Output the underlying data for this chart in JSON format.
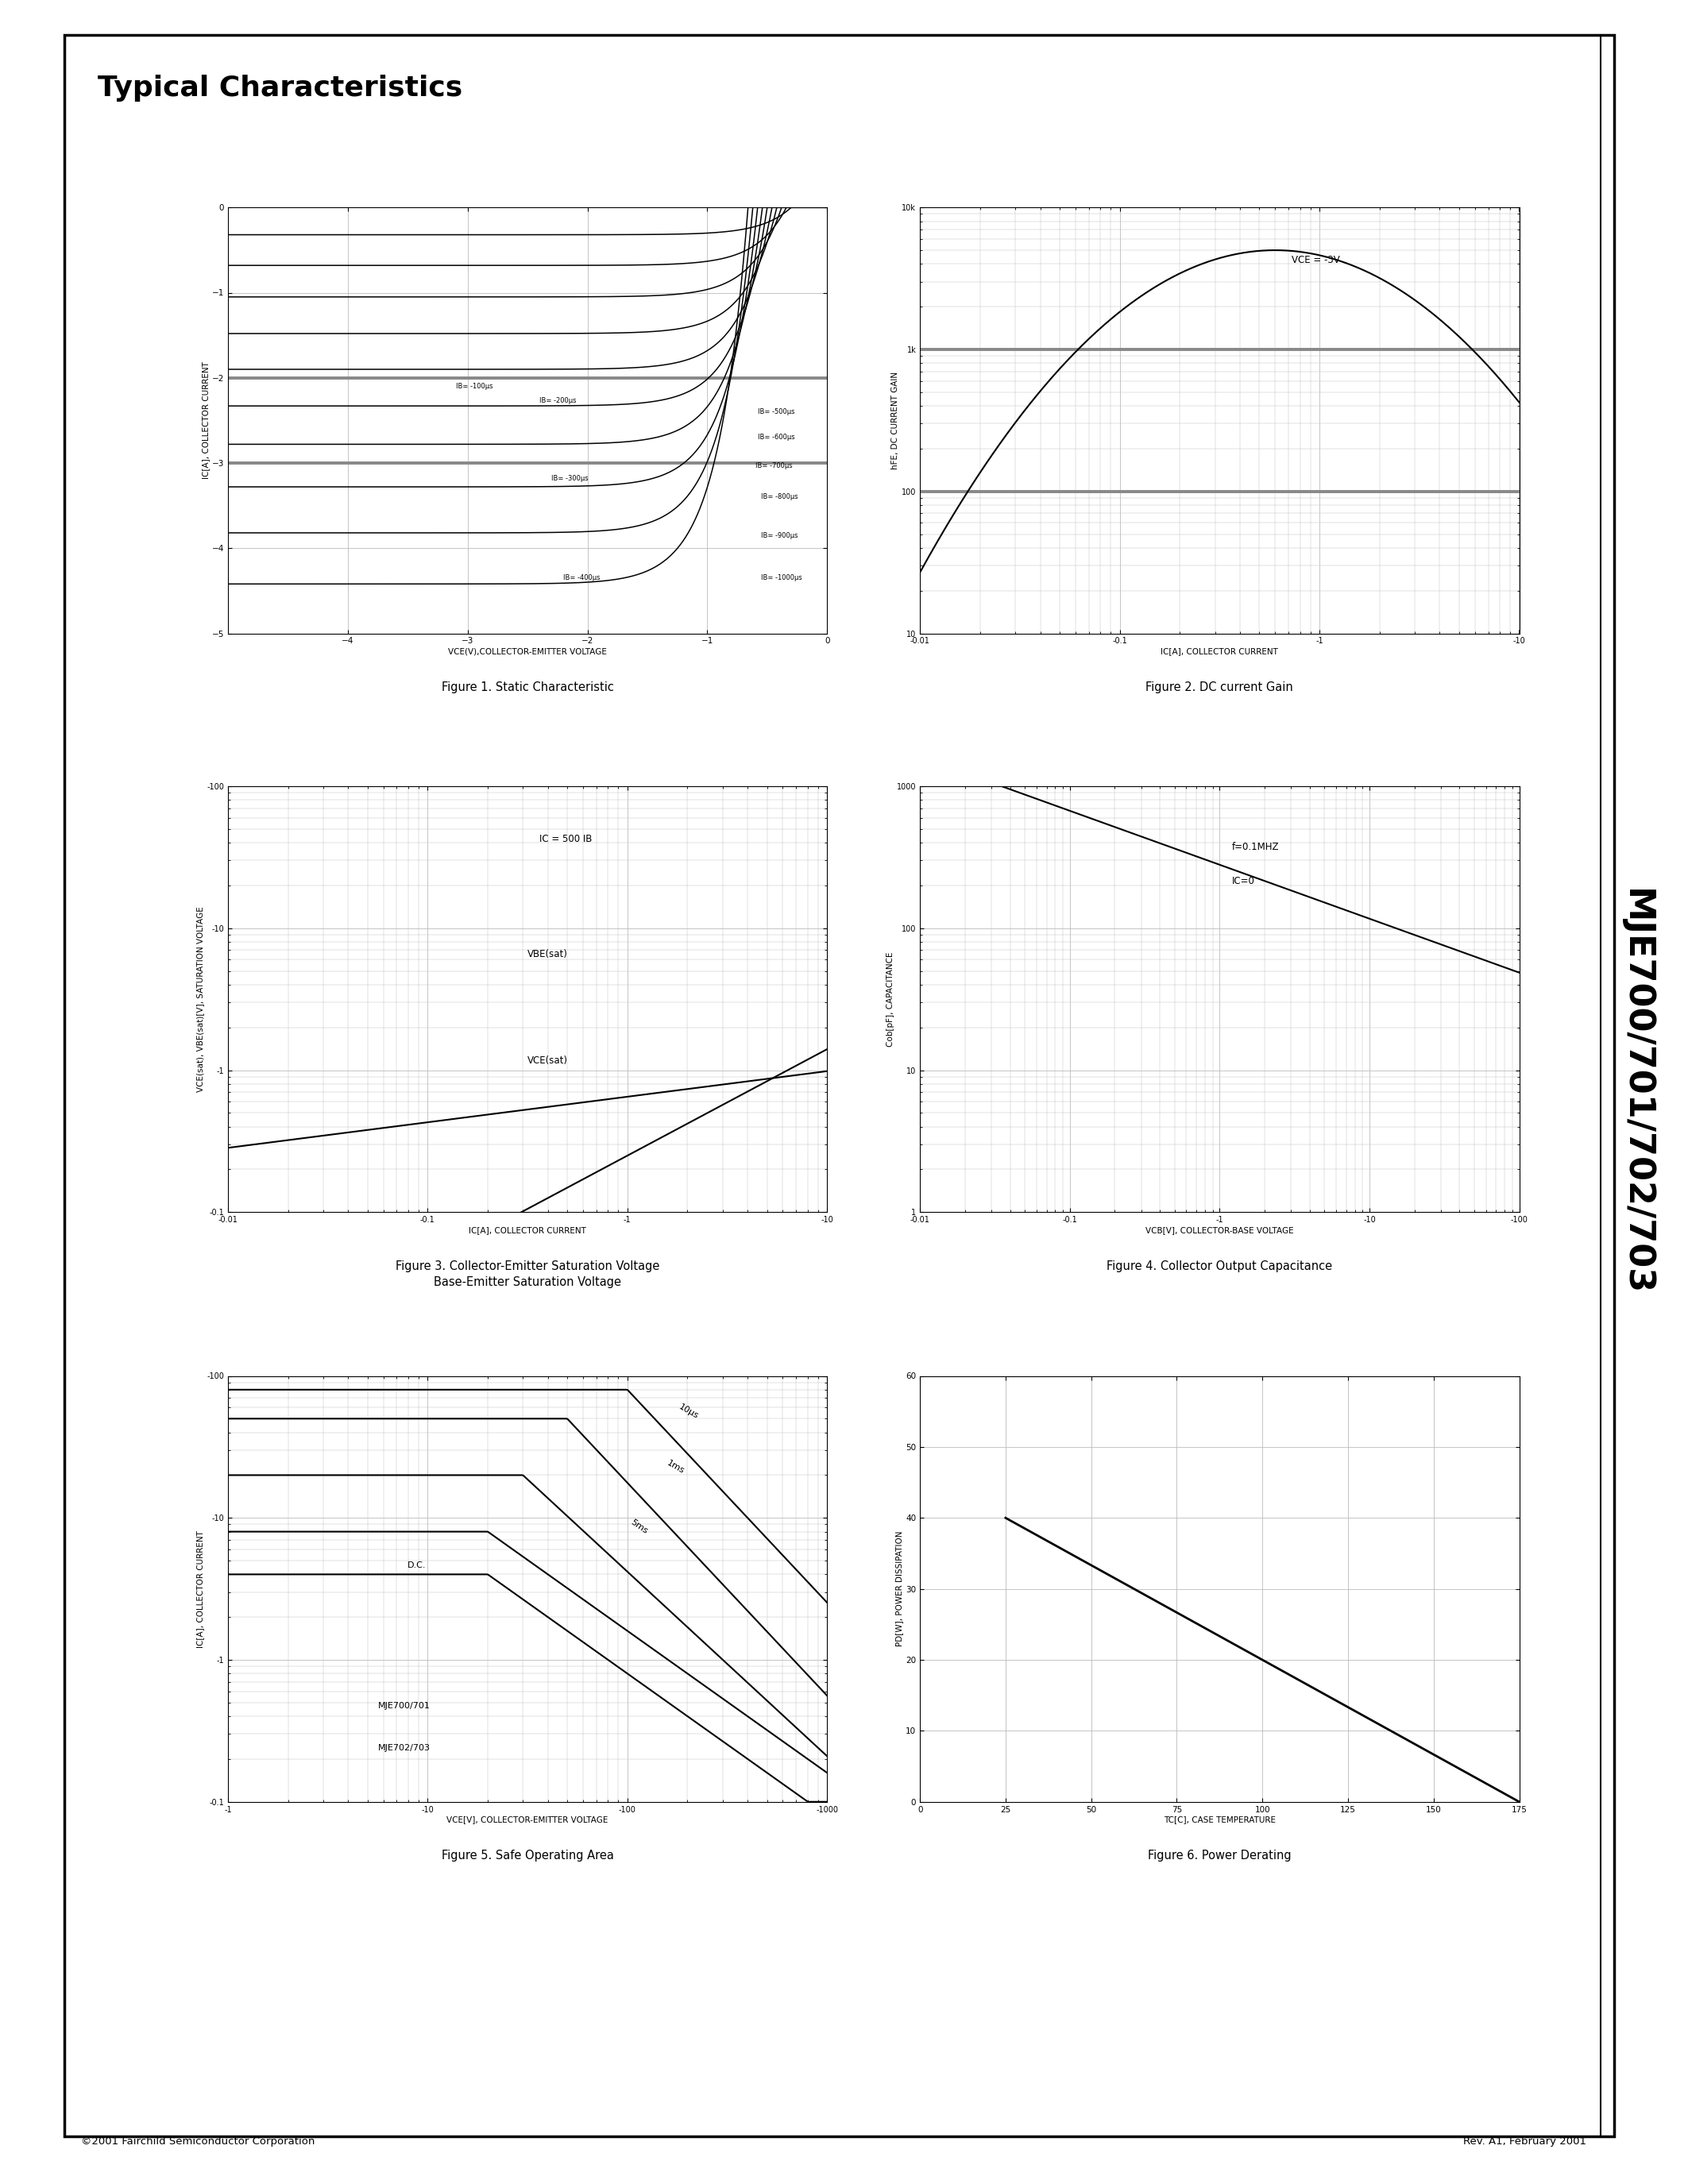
{
  "page_title": "Typical Characteristics",
  "part_number": "MJE700/701/702/703",
  "fig1_title": "Figure 1. Static Characteristic",
  "fig1_xlabel": "VCE(V),COLLECTOR-EMITTER VOLTAGE",
  "fig1_ylabel": "IC[A], COLLECTOR CURRENT",
  "fig2_title": "Figure 2. DC current Gain",
  "fig2_xlabel": "IC[A], COLLECTOR CURRENT",
  "fig2_ylabel": "hFE, DC CURRENT GAIN",
  "fig2_vce": "VCE = -3V",
  "fig3_title_line1": "Figure 3. Collector-Emitter Saturation Voltage",
  "fig3_title_line2": "Base-Emitter Saturation Voltage",
  "fig3_xlabel": "IC[A], COLLECTOR CURRENT",
  "fig3_ylabel": "VCE(sat), VBE(sat)[V], SATURATION VOLTAGE",
  "fig3_ic500ib": "IC = 500 IB",
  "fig3_vbesat": "VBE(sat)",
  "fig3_vcesat": "VCE(sat)",
  "fig4_title": "Figure 4. Collector Output Capacitance",
  "fig4_xlabel": "VCB[V], COLLECTOR-BASE VOLTAGE",
  "fig4_ylabel": "Cob[pF], CAPACITANCE",
  "fig4_ann1": "f=0.1MHZ",
  "fig4_ann2": "IC=0",
  "fig5_title": "Figure 5. Safe Operating Area",
  "fig5_xlabel": "VCE[V], COLLECTOR-EMITTER VOLTAGE",
  "fig5_ylabel": "IC[A], COLLECTOR CURRENT",
  "fig6_title": "Figure 6. Power Derating",
  "fig6_xlabel": "TC[C], CASE TEMPERATURE",
  "fig6_ylabel": "PD[W], POWER DISSIPATION",
  "footer_left": "2001 Fairchild Semiconductor Corporation",
  "footer_right": "Rev. A1, February 2001",
  "grid_color": "#bbbbbb",
  "curve_color": "#000000",
  "ref_line_color": "#888888"
}
